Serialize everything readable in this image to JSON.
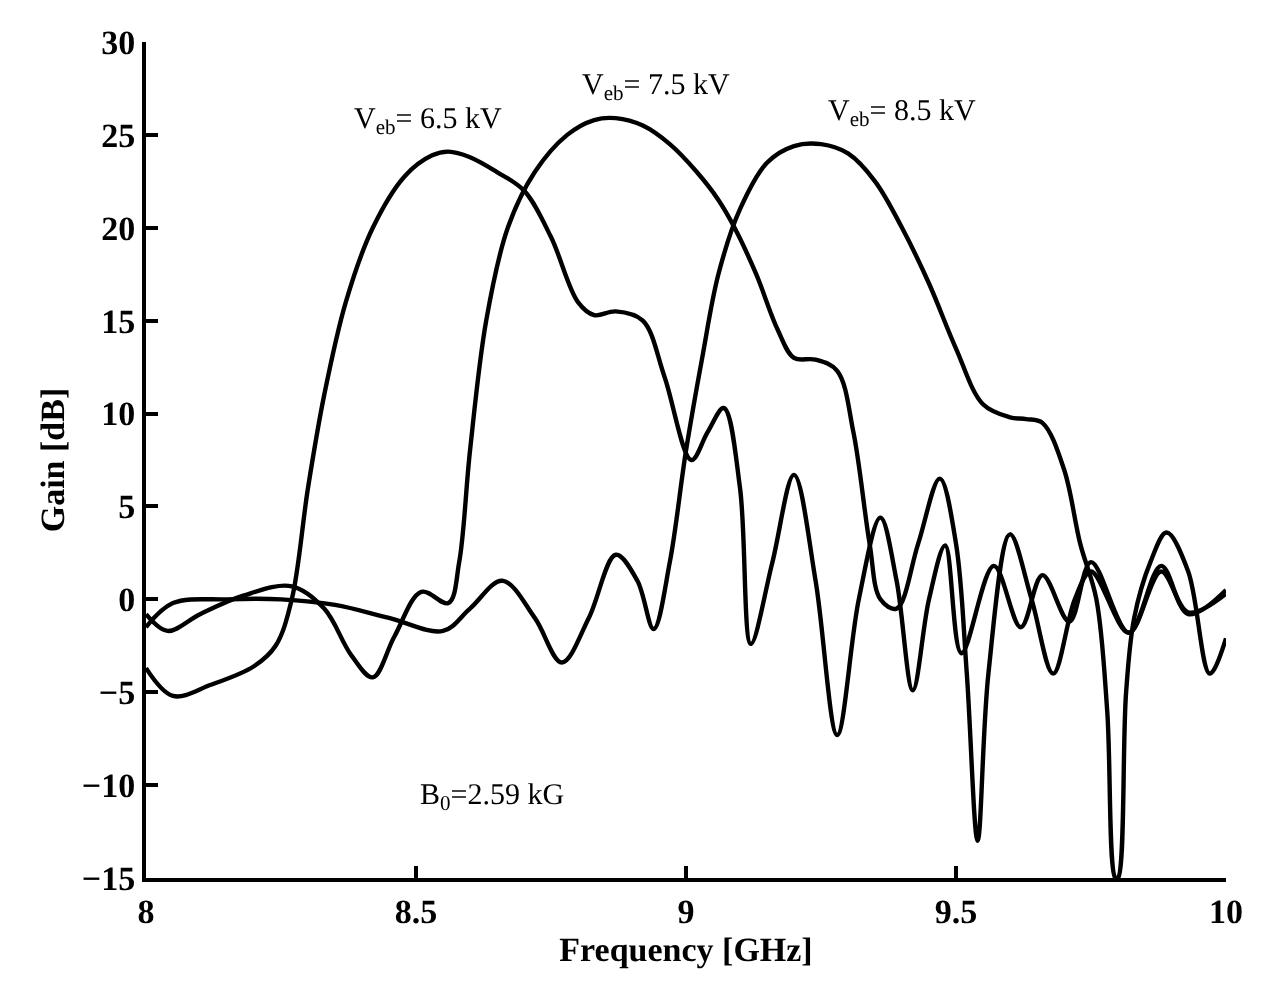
{
  "chart_data": {
    "type": "line",
    "xlabel": "Frequency [GHz]",
    "ylabel": "Gain [dB]",
    "xlim": [
      8,
      10
    ],
    "xticks": [
      8,
      8.5,
      9,
      9.5,
      10
    ],
    "ylim": [
      -15,
      30
    ],
    "yticks": [
      -15,
      -10,
      -5,
      0,
      5,
      10,
      15,
      20,
      25,
      30
    ],
    "legend": false,
    "marker": "none",
    "line_style": "solid",
    "annotations": [
      "B$_{0}$=2.59 kG"
    ],
    "series": [
      {
        "name": "V$_{eb}$= 6.5 kV",
        "color": "#000000",
        "x": [
          8.0,
          8.05,
          8.12,
          8.2,
          8.24,
          8.27,
          8.3,
          8.33,
          8.37,
          8.42,
          8.48,
          8.53,
          8.56,
          8.6,
          8.65,
          8.7,
          8.75,
          8.8,
          8.83,
          8.87,
          8.92,
          8.96,
          9.01,
          9.04,
          9.07,
          9.1,
          9.12,
          9.16,
          9.2,
          9.24,
          9.28,
          9.32,
          9.36,
          9.39,
          9.42,
          9.45,
          9.48,
          9.51,
          9.57,
          9.62,
          9.66,
          9.71,
          9.75,
          9.82,
          9.88,
          9.93,
          10.0
        ],
        "values": [
          -3.7,
          -5.2,
          -4.6,
          -3.6,
          -2.5,
          0,
          6,
          11,
          16,
          20,
          22.8,
          23.9,
          24.1,
          23.8,
          23,
          22,
          19.5,
          16,
          15.3,
          15.5,
          15,
          12,
          7.5,
          9,
          10.3,
          6,
          -2.4,
          2,
          6.7,
          1,
          -7.3,
          0,
          4.4,
          1,
          -4.9,
          0,
          2.9,
          -2.9,
          1.8,
          -1.5,
          1.3,
          -1.2,
          2.0,
          -1.8,
          1.5,
          -0.7,
          0.3
        ]
      },
      {
        "name": "V$_{eb}$= 7.5 kV",
        "color": "#000000",
        "x": [
          8.0,
          8.04,
          8.1,
          8.18,
          8.27,
          8.33,
          8.38,
          8.42,
          8.46,
          8.51,
          8.56,
          8.58,
          8.6,
          8.63,
          8.67,
          8.72,
          8.78,
          8.83,
          8.87,
          8.92,
          8.97,
          9.02,
          9.06,
          9.09,
          9.13,
          9.17,
          9.2,
          9.24,
          9.28,
          9.31,
          9.34,
          9.36,
          9.39,
          9.43,
          9.47,
          9.5,
          9.52,
          9.54,
          9.56,
          9.6,
          9.64,
          9.68,
          9.72,
          9.75,
          9.82,
          9.88,
          9.93,
          10.0
        ],
        "values": [
          -0.8,
          -1.7,
          -0.8,
          0.2,
          0.7,
          -0.5,
          -3,
          -4.2,
          -2,
          0.4,
          -0.2,
          2,
          8,
          15,
          20,
          23,
          25,
          25.8,
          25.9,
          25.5,
          24.5,
          23,
          21.5,
          20,
          17.5,
          14.5,
          13,
          12.9,
          12.3,
          9,
          3,
          0,
          -0.5,
          3,
          6.5,
          3,
          -4,
          -13,
          -4,
          3.5,
          0,
          -4,
          0,
          1.5,
          -1.8,
          1.8,
          -0.8,
          0.5
        ]
      },
      {
        "name": "V$_{eb}$= 8.5 kV",
        "color": "#000000",
        "x": [
          8.0,
          8.05,
          8.15,
          8.25,
          8.35,
          8.45,
          8.55,
          8.6,
          8.66,
          8.72,
          8.77,
          8.82,
          8.87,
          8.91,
          8.94,
          8.97,
          9.0,
          9.03,
          9.06,
          9.1,
          9.15,
          9.2,
          9.25,
          9.3,
          9.35,
          9.4,
          9.45,
          9.5,
          9.55,
          9.6,
          9.63,
          9.66,
          9.7,
          9.73,
          9.76,
          9.78,
          9.795,
          9.8,
          9.815,
          9.83,
          9.86,
          9.89,
          9.93,
          9.97,
          10.0
        ],
        "values": [
          -1.5,
          -0.2,
          0,
          0,
          -0.3,
          -1,
          -1.7,
          -0.5,
          1,
          -1,
          -3.4,
          -1,
          2.4,
          1,
          -1.6,
          2,
          8,
          13,
          17.5,
          21,
          23.5,
          24.4,
          24.5,
          24,
          22.5,
          20,
          17,
          13.5,
          10.5,
          9.8,
          9.7,
          9.5,
          7,
          3,
          0,
          -6,
          -15,
          -15,
          -5,
          -1,
          2,
          3.6,
          1.5,
          -4,
          -2.1
        ]
      }
    ]
  }
}
